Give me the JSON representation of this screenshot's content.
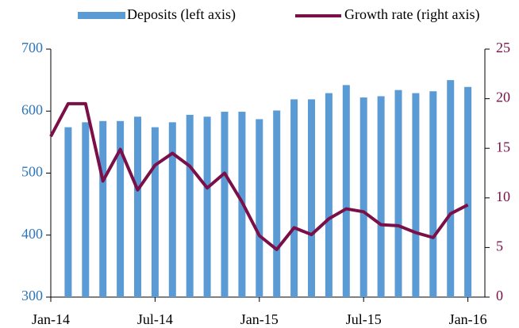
{
  "chart_data": {
    "type": "bar-line",
    "categories": [
      "Jan-14",
      null,
      null,
      null,
      null,
      null,
      "Jul-14",
      null,
      null,
      null,
      null,
      null,
      "Jan-15",
      null,
      null,
      null,
      null,
      null,
      "Jul-15",
      null,
      null,
      null,
      null,
      null,
      "Jan-16"
    ],
    "series": [
      {
        "name": "Deposits (left axis)",
        "type": "bar",
        "color": "#5b9bd5",
        "values": [
          null,
          574,
          582,
          584,
          584,
          591,
          574,
          582,
          594,
          591,
          599,
          599,
          587,
          601,
          619,
          619,
          629,
          642,
          622,
          624,
          634,
          629,
          632,
          650,
          639
        ]
      },
      {
        "name": "Growth rate (right axis)",
        "type": "line",
        "axis": "y2",
        "color": "#7b1048",
        "values": [
          16.2,
          19.5,
          19.5,
          11.7,
          14.9,
          10.8,
          13.3,
          14.5,
          13.2,
          11.0,
          12.5,
          9.6,
          6.2,
          4.8,
          7.0,
          6.3,
          7.9,
          8.9,
          8.6,
          7.3,
          7.2,
          6.5,
          6.0,
          8.4,
          9.3
        ]
      }
    ],
    "ylim": [
      300,
      700
    ],
    "yticks": [
      300,
      400,
      500,
      600,
      700
    ],
    "ycolor": "#2e75b6",
    "y2lim": [
      0,
      25
    ],
    "y2ticks": [
      0,
      5,
      10,
      15,
      20,
      25
    ],
    "y2color": "#7b1048",
    "legend": "top"
  }
}
